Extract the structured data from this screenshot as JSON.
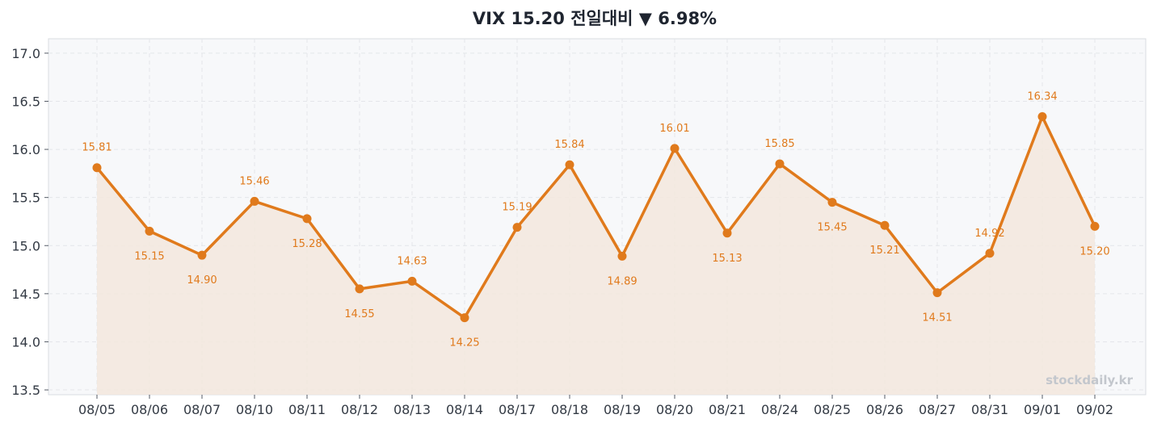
{
  "chart_data": {
    "type": "line",
    "title": "VIX 15.20 전일대비 ▼ 6.98%",
    "xlabel": "",
    "ylabel": "",
    "categories": [
      "08/05",
      "08/06",
      "08/07",
      "08/10",
      "08/11",
      "08/12",
      "08/13",
      "08/14",
      "08/17",
      "08/18",
      "08/19",
      "08/20",
      "08/21",
      "08/24",
      "08/25",
      "08/26",
      "08/27",
      "08/31",
      "09/01",
      "09/02"
    ],
    "series": [
      {
        "values": [
          15.81,
          15.15,
          14.9,
          15.46,
          15.28,
          14.55,
          14.63,
          14.25,
          15.19,
          15.84,
          14.89,
          16.01,
          15.13,
          15.85,
          15.45,
          15.21,
          14.51,
          14.92,
          16.34,
          15.2
        ],
        "labels": [
          "15.81",
          "15.15",
          "14.90",
          "15.46",
          "15.28",
          "14.55",
          "14.63",
          "14.25",
          "15.19",
          "15.84",
          "14.89",
          "16.01",
          "15.13",
          "15.85",
          "15.45",
          "15.21",
          "14.51",
          "14.92",
          "16.34",
          "15.20"
        ]
      }
    ],
    "y_ticks": [
      "13.5",
      "14.0",
      "14.5",
      "15.0",
      "15.5",
      "16.0",
      "16.5",
      "17.0"
    ],
    "ylim": [
      13.45,
      17.15
    ],
    "grid": true,
    "area_fill": true,
    "line_color": "#e07a1c",
    "fill_color": "#f3e7dd",
    "plot_background": "#f7f8fa",
    "watermark": "stockdaily.kr"
  }
}
